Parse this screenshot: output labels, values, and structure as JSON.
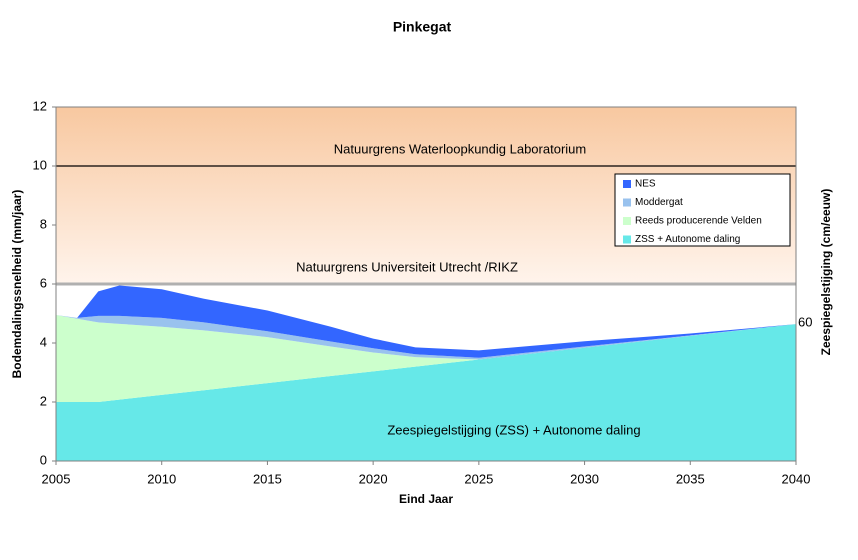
{
  "chart_data": {
    "type": "stacked_area",
    "title": "Pinkegat",
    "xlabel": "Eind Jaar",
    "ylabel": "Bodemdalingssnelheid (mm/jaar)",
    "y2label": "Zeespiegelstijging  (cm/eeuw)",
    "x": [
      2005,
      2006,
      2007,
      2008,
      2010,
      2012,
      2015,
      2018,
      2020,
      2022,
      2025,
      2030,
      2035,
      2040
    ],
    "series": [
      {
        "name": "ZSS + Autonome daling",
        "color": "#66e8e8",
        "values": [
          2.0,
          2.0,
          2.0,
          2.08,
          2.24,
          2.4,
          2.64,
          2.88,
          3.04,
          3.2,
          3.44,
          3.84,
          4.24,
          4.64
        ]
      },
      {
        "name": "Reeds producerende  Velden",
        "color": "#ccffcc",
        "values": [
          2.95,
          2.82,
          2.7,
          2.57,
          2.31,
          2.03,
          1.56,
          1.0,
          0.64,
          0.32,
          0,
          0,
          0,
          0
        ]
      },
      {
        "name": "Moddergat",
        "color": "#99c2ee",
        "values": [
          0,
          0.03,
          0.22,
          0.27,
          0.3,
          0.27,
          0.2,
          0.17,
          0.14,
          0.1,
          0.06,
          0.04,
          0.02,
          0
        ]
      },
      {
        "name": "NES",
        "color": "#3366ff",
        "values": [
          0,
          0,
          0.83,
          1.03,
          0.97,
          0.8,
          0.7,
          0.5,
          0.33,
          0.23,
          0.25,
          0.18,
          0.06,
          0
        ]
      }
    ],
    "xlim": [
      2005,
      2040
    ],
    "xticks": [
      2005,
      2010,
      2015,
      2020,
      2025,
      2030,
      2035,
      2040
    ],
    "ylim": [
      0,
      12
    ],
    "yticks": [
      0,
      2,
      4,
      6,
      8,
      10,
      12
    ],
    "reference_lines": [
      {
        "value": 10,
        "label": "Natuurgrens Waterloopkundig Laboratorium",
        "color": "#000000"
      },
      {
        "value": 6,
        "label": "Natuurgrens Universiteit Utrecht /RIKZ",
        "color": "#b0b0b0"
      }
    ],
    "annotations": [
      "Zeespiegelstijging (ZSS) + Autonome daling",
      "60"
    ]
  }
}
